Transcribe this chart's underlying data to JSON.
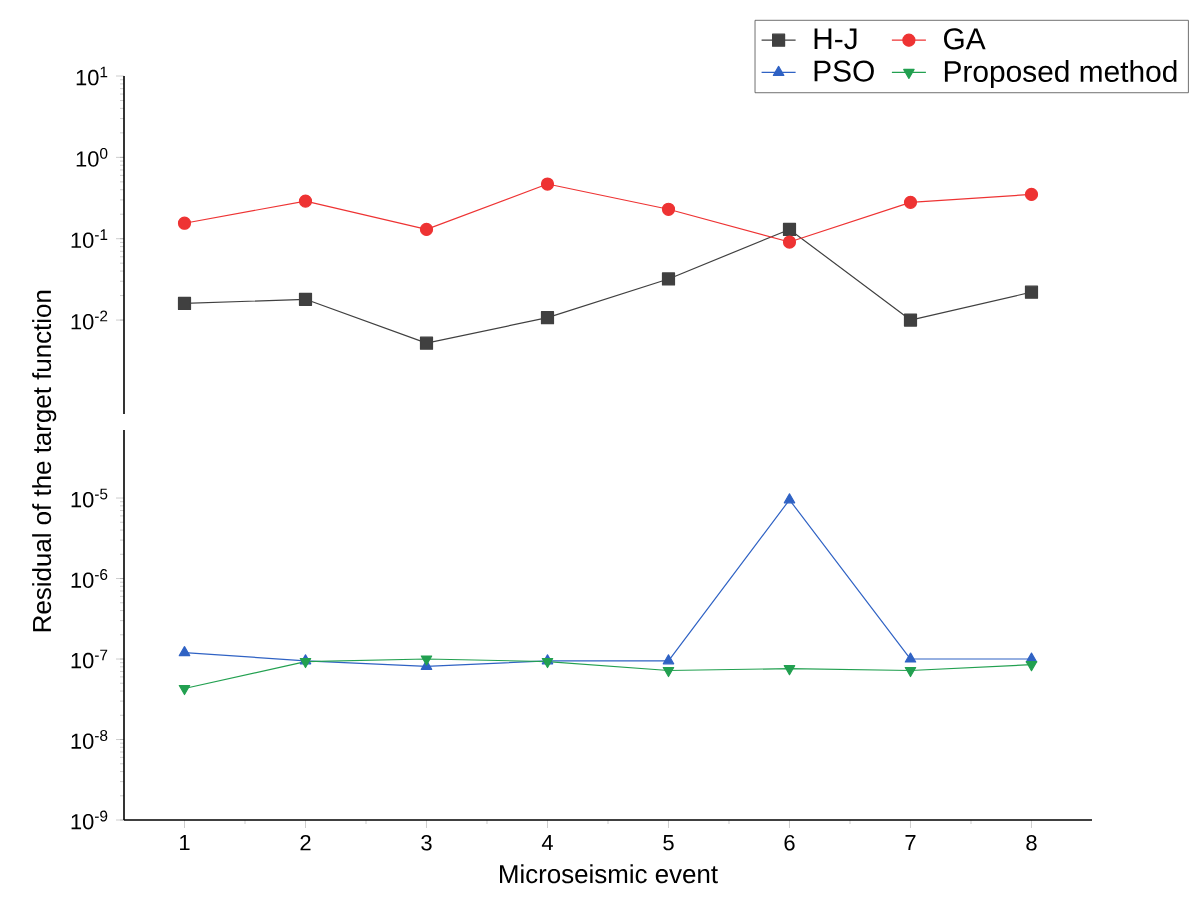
{
  "chart_data": [
    {
      "type": "line",
      "categories": [
        "1",
        "2",
        "3",
        "4",
        "5",
        "6",
        "7",
        "8"
      ],
      "log": "y",
      "ylim": [
        0.0007,
        10
      ],
      "yticks": [
        {
          "value": 0.01,
          "label": "10$^{-2}$"
        },
        {
          "value": 0.1,
          "label": "10$^{-1}$"
        },
        {
          "value": 1,
          "label": "10$^{0}$"
        },
        {
          "value": 10,
          "label": "10$^{1}$"
        }
      ],
      "tick_labels": "y",
      "legend": "top right",
      "line_style": "solid",
      "series": [
        {
          "name": "H-J",
          "color": "#404040",
          "marker": "square",
          "values": [
            0.016,
            0.018,
            0.0052,
            0.0107,
            0.032,
            0.13,
            0.01,
            0.022
          ]
        },
        {
          "name": "GA",
          "color": "#ee3333",
          "marker": "circle",
          "values": [
            0.155,
            0.29,
            0.13,
            0.47,
            0.23,
            0.091,
            0.28,
            0.35
          ]
        },
        {
          "name": "PSO",
          "color": "#2f62c4",
          "marker": "triangle",
          "values": [
            null,
            null,
            null,
            null,
            null,
            null,
            null,
            null
          ]
        },
        {
          "name": "Proposed method",
          "color": "#22a050",
          "marker": "triangle-down",
          "values": [
            null,
            null,
            null,
            null,
            null,
            null,
            null,
            null
          ]
        }
      ]
    },
    {
      "type": "line",
      "categories": [
        "1",
        "2",
        "3",
        "4",
        "5",
        "6",
        "7",
        "8"
      ],
      "log": "y",
      "ylim": [
        1e-09,
        7e-05
      ],
      "yticks": [
        {
          "value": 1e-09,
          "label": "10$^{-9}$"
        },
        {
          "value": 1e-08,
          "label": "10$^{-8}$"
        },
        {
          "value": 1e-07,
          "label": "10$^{-7}$"
        },
        {
          "value": 1e-06,
          "label": "10$^{-6}$"
        },
        {
          "value": 1e-05,
          "label": "10$^{-5}$"
        }
      ],
      "xlabel": "Microseismic event",
      "ylabel": "Residual of the target function",
      "line_style": "solid",
      "series": [
        {
          "color": "#2f62c4",
          "marker": "triangle",
          "values": [
            1.2e-07,
            9.5e-08,
            8.1e-08,
            9.5e-08,
            9.5e-08,
            9.5e-06,
            1e-07,
            1e-07
          ]
        },
        {
          "color": "#22a050",
          "marker": "triangle-down",
          "values": [
            4.3e-08,
            9.3e-08,
            1e-07,
            9.3e-08,
            7.2e-08,
            7.6e-08,
            7.2e-08,
            8.5e-08
          ]
        }
      ]
    }
  ]
}
